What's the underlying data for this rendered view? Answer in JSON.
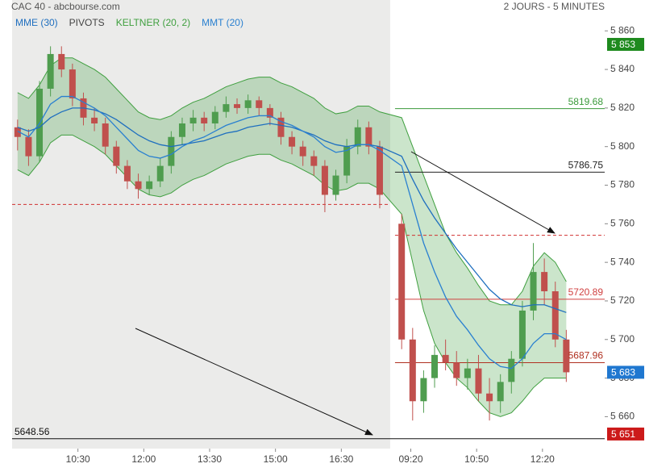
{
  "chart_data": {
    "type": "candlestick",
    "title": "CAC 40 - abcbourse.com",
    "subtitle": "2 JOURS - 5 MINUTES",
    "x": [
      0.5,
      1.5,
      2.5,
      3.5,
      4.5,
      5.5,
      6.5,
      7.5,
      8.5,
      9.5,
      10.5,
      11.5,
      12.5,
      13.5,
      14.5,
      15.5,
      16.5,
      17.5,
      18.5,
      19.5,
      20.5,
      21.5,
      22.5,
      23.5,
      24.5,
      25.5,
      26.5,
      27.5,
      28.5,
      29.5,
      30.5,
      31.5,
      32.5,
      33.5,
      35.5,
      36.5,
      37.5,
      38.5,
      39.5,
      40.5,
      41.5,
      42.5,
      43.5,
      44.5,
      45.5,
      46.5,
      47.5,
      48.5,
      49.5,
      50.5
    ],
    "open": [
      5810,
      5805,
      5795,
      5830,
      5848,
      5840,
      5825,
      5815,
      5812,
      5800,
      5790,
      5782,
      5778,
      5782,
      5790,
      5805,
      5812,
      5815,
      5812,
      5818,
      5822,
      5820,
      5824,
      5820,
      5815,
      5805,
      5800,
      5795,
      5790,
      5775,
      5785,
      5800,
      5810,
      5800,
      5760,
      5700,
      5668,
      5680,
      5692,
      5688,
      5680,
      5685,
      5672,
      5668,
      5678,
      5690,
      5715,
      5735,
      5725,
      5700
    ],
    "high": [
      5814,
      5809,
      5834,
      5852,
      5852,
      5843,
      5828,
      5820,
      5815,
      5803,
      5793,
      5786,
      5785,
      5794,
      5808,
      5815,
      5819,
      5818,
      5821,
      5826,
      5825,
      5827,
      5826,
      5822,
      5818,
      5808,
      5803,
      5798,
      5793,
      5788,
      5804,
      5814,
      5813,
      5803,
      5765,
      5706,
      5684,
      5697,
      5700,
      5694,
      5690,
      5692,
      5680,
      5682,
      5694,
      5720,
      5750,
      5742,
      5730,
      5705
    ],
    "low": [
      5798,
      5790,
      5792,
      5826,
      5836,
      5821,
      5811,
      5808,
      5796,
      5786,
      5778,
      5773,
      5775,
      5779,
      5786,
      5801,
      5808,
      5808,
      5809,
      5815,
      5817,
      5817,
      5816,
      5811,
      5801,
      5796,
      5790,
      5785,
      5766,
      5772,
      5781,
      5796,
      5796,
      5768,
      5695,
      5658,
      5662,
      5675,
      5684,
      5676,
      5674,
      5668,
      5658,
      5662,
      5672,
      5686,
      5710,
      5718,
      5696,
      5678
    ],
    "close": [
      5805,
      5795,
      5830,
      5848,
      5840,
      5825,
      5815,
      5812,
      5800,
      5790,
      5782,
      5778,
      5782,
      5790,
      5805,
      5812,
      5815,
      5812,
      5818,
      5822,
      5820,
      5824,
      5820,
      5815,
      5805,
      5800,
      5795,
      5790,
      5775,
      5785,
      5800,
      5810,
      5800,
      5775,
      5700,
      5668,
      5680,
      5692,
      5688,
      5680,
      5685,
      5672,
      5668,
      5678,
      5690,
      5715,
      5735,
      5725,
      5700,
      5683
    ],
    "up_color": "#4f9d4f",
    "down_color": "#c0504d",
    "keltner": {
      "name": "KELTNER (20, 2)",
      "color": "#3f9f3f",
      "fill": "rgba(70,160,70,0.28)",
      "upper": [
        5828,
        5825,
        5832,
        5842,
        5846,
        5846,
        5843,
        5840,
        5836,
        5830,
        5824,
        5818,
        5815,
        5814,
        5816,
        5820,
        5823,
        5825,
        5828,
        5831,
        5833,
        5835,
        5836,
        5836,
        5833,
        5831,
        5828,
        5825,
        5820,
        5817,
        5818,
        5821,
        5821,
        5818,
        5815,
        5800,
        5785,
        5770,
        5755,
        5745,
        5737,
        5728,
        5720,
        5718,
        5718,
        5725,
        5738,
        5745,
        5740,
        5730
      ],
      "lower": [
        5788,
        5785,
        5792,
        5802,
        5806,
        5806,
        5803,
        5800,
        5796,
        5790,
        5784,
        5778,
        5775,
        5774,
        5776,
        5780,
        5783,
        5785,
        5788,
        5791,
        5793,
        5795,
        5796,
        5796,
        5793,
        5791,
        5788,
        5785,
        5780,
        5777,
        5778,
        5781,
        5781,
        5778,
        5765,
        5740,
        5715,
        5698,
        5688,
        5680,
        5675,
        5668,
        5662,
        5660,
        5662,
        5668,
        5675,
        5680,
        5680,
        5680
      ]
    },
    "series": [
      {
        "name": "MME (30)",
        "color": "#1f6fbf",
        "values": [
          5810,
          5808,
          5810,
          5815,
          5818,
          5820,
          5820,
          5819,
          5817,
          5814,
          5810,
          5806,
          5803,
          5801,
          5800,
          5801,
          5802,
          5803,
          5805,
          5807,
          5808,
          5810,
          5811,
          5812,
          5811,
          5810,
          5808,
          5806,
          5803,
          5801,
          5800,
          5801,
          5801,
          5800,
          5795,
          5783,
          5772,
          5763,
          5755,
          5747,
          5740,
          5733,
          5726,
          5721,
          5718,
          5717,
          5718,
          5718,
          5716,
          5714
        ]
      },
      {
        "name": "MMT (20)",
        "color": "#2a80d0",
        "values": [
          5808,
          5805,
          5812,
          5822,
          5826,
          5826,
          5823,
          5820,
          5816,
          5810,
          5804,
          5798,
          5795,
          5794,
          5796,
          5800,
          5803,
          5805,
          5808,
          5811,
          5813,
          5815,
          5816,
          5816,
          5813,
          5811,
          5808,
          5805,
          5800,
          5797,
          5798,
          5801,
          5801,
          5798,
          5790,
          5770,
          5750,
          5735,
          5722,
          5712,
          5705,
          5697,
          5690,
          5686,
          5685,
          5690,
          5698,
          5703,
          5703,
          5700
        ]
      }
    ],
    "pivots": {
      "name": "PIVOTS",
      "values": [
        5819.68,
        5786.75,
        5720.89,
        5687.96,
        5648.56
      ],
      "colors": [
        "#3a9a3a",
        "#222222",
        "#d04040",
        "#b03020",
        "#111111"
      ],
      "full_width": [
        false,
        false,
        false,
        false,
        true
      ]
    },
    "dashed_levels": [
      5770,
      5754
    ],
    "dashed_color": "#d03030",
    "last_labels": [
      {
        "value": 5853,
        "label": "5 853",
        "color": "#1e8a1e"
      },
      {
        "value": 5683,
        "label": "5 683",
        "color": "#1f77d0"
      },
      {
        "value": 5651,
        "label": "5 651",
        "color": "#cc1a1a"
      }
    ],
    "xlim": [
      0,
      54
    ],
    "ylim": [
      5638,
      5876
    ],
    "xticks": [
      {
        "value": 6,
        "label": "10:30"
      },
      {
        "value": 12,
        "label": "12:00"
      },
      {
        "value": 18,
        "label": "13:30"
      },
      {
        "value": 24,
        "label": "15:00"
      },
      {
        "value": 30,
        "label": "16:30"
      },
      {
        "value": 36.33,
        "label": "09:20"
      },
      {
        "value": 42.33,
        "label": "10:50"
      },
      {
        "value": 48.33,
        "label": "12:20"
      }
    ],
    "yticks": [
      {
        "value": 5660,
        "label": "5 660"
      },
      {
        "value": 5680,
        "label": "5 680"
      },
      {
        "value": 5700,
        "label": "5 700"
      },
      {
        "value": 5720,
        "label": "5 720"
      },
      {
        "value": 5740,
        "label": "5 740"
      },
      {
        "value": 5760,
        "label": "5 760"
      },
      {
        "value": 5780,
        "label": "5 780"
      },
      {
        "value": 5800,
        "label": "5 800"
      },
      {
        "value": 5820,
        "label": "5 820"
      },
      {
        "value": 5840,
        "label": "5 840"
      },
      {
        "value": 5860,
        "label": "5 860"
      }
    ]
  }
}
